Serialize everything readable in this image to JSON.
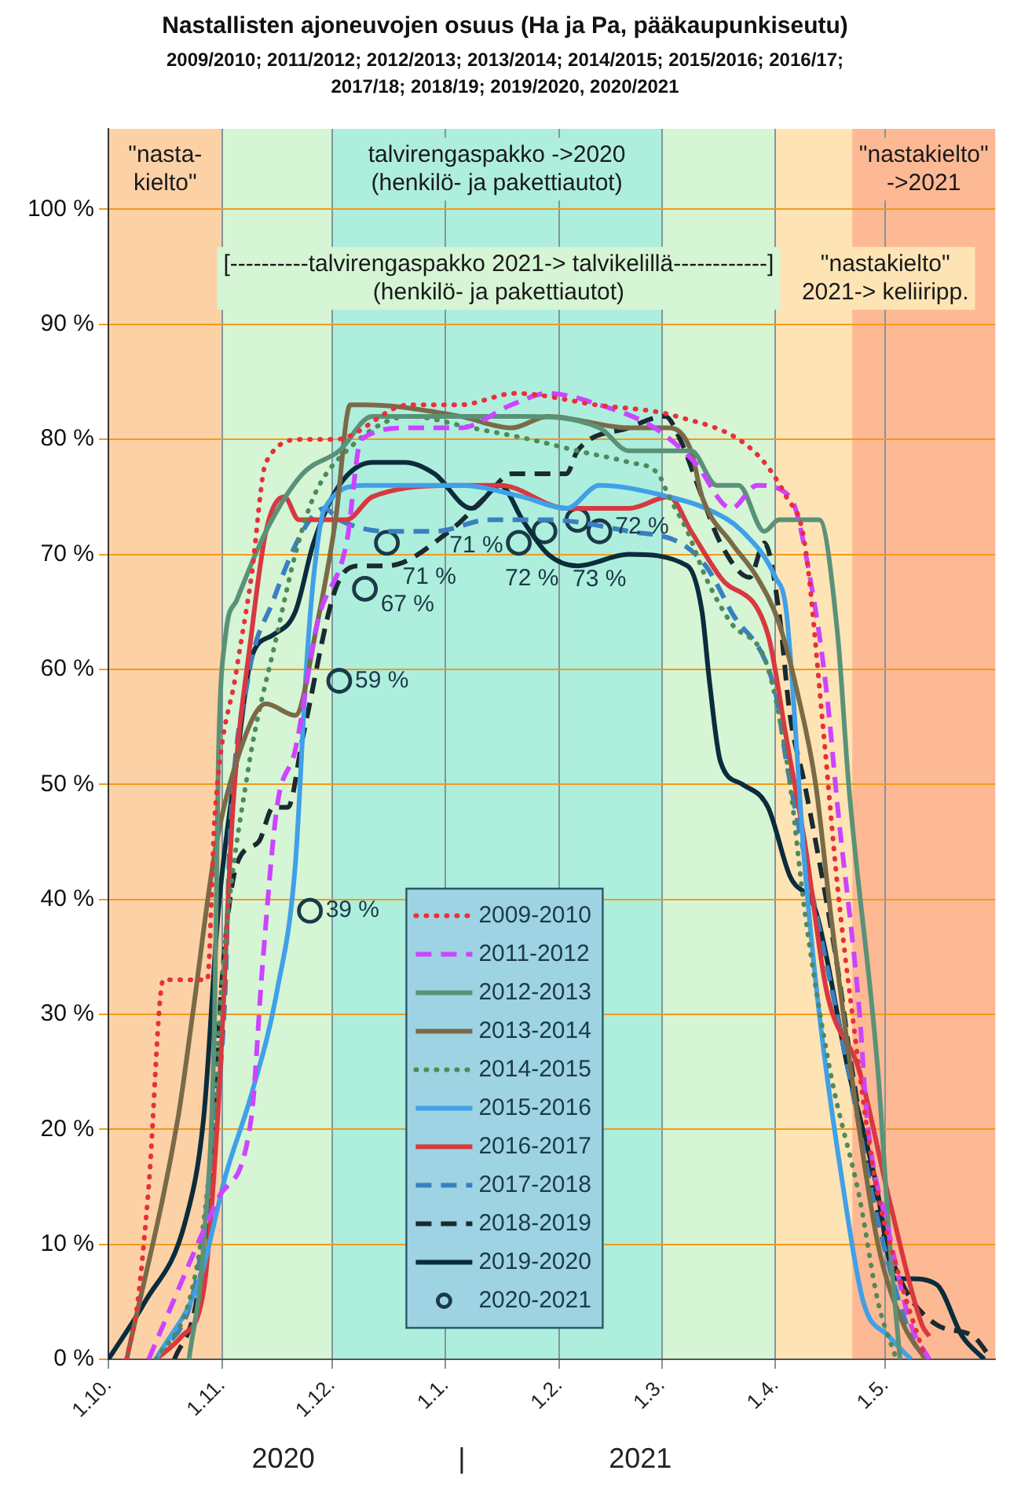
{
  "chart_data": {
    "type": "line",
    "title": "Nastallisten ajoneuvojen osuus (Ha ja Pa, pääkaupunkiseutu)",
    "subtitle": "2009/2010; 2011/2012; 2012/2013; 2013/2014; 2014/2015; 2015/2016; 2016/17; 2017/18;  2018/19; 2019/2020, 2020/2021",
    "xlim": [
      "2020-10-01",
      "2021-05-31"
    ],
    "xticks": [
      {
        "value": "2020-10-01",
        "label": "1.10."
      },
      {
        "value": "2020-11-01",
        "label": "1.11."
      },
      {
        "value": "2020-12-01",
        "label": "1.12."
      },
      {
        "value": "2021-01-01",
        "label": "1.1."
      },
      {
        "value": "2021-02-01",
        "label": "1.2."
      },
      {
        "value": "2021-03-01",
        "label": "1.3."
      },
      {
        "value": "2021-04-01",
        "label": "1.4."
      },
      {
        "value": "2021-05-01",
        "label": "1.5."
      }
    ],
    "ylim": [
      0,
      107
    ],
    "yticks": [
      {
        "value": 0,
        "label": "0 %"
      },
      {
        "value": 10,
        "label": "10 %"
      },
      {
        "value": 20,
        "label": "20 %"
      },
      {
        "value": 30,
        "label": "30 %"
      },
      {
        "value": 40,
        "label": "40 %"
      },
      {
        "value": 50,
        "label": "50 %"
      },
      {
        "value": 60,
        "label": "60 %"
      },
      {
        "value": 70,
        "label": "70 %"
      },
      {
        "value": 80,
        "label": "80 %"
      },
      {
        "value": 90,
        "label": "90 %"
      },
      {
        "value": 100,
        "label": "100 %"
      }
    ],
    "grid": true,
    "legend": "bottom",
    "bands": [
      {
        "axis": "x",
        "from": "2020-10-01",
        "to": "2020-11-01",
        "color": "#fdd1a6",
        "label": "\"nasta-\nkielto\""
      },
      {
        "axis": "x",
        "from": "2020-11-01",
        "to": "2021-04-01",
        "color": "#d5f5d5",
        "label": "[----------talvirengaspakko 2021-> talvikelillä------------]\n(henkilö- ja pakettiautot)"
      },
      {
        "axis": "x",
        "from": "2020-12-01",
        "to": "2021-03-01",
        "color": "#aeeedd",
        "label": "talvirengaspakko ->2020\n(henkilö- ja pakettiautot)"
      },
      {
        "axis": "x",
        "from": "2021-04-01",
        "to": "2021-05-31",
        "color": "#fee4b5",
        "label": "\"nastakielto\"\n2021-> keliiripp."
      },
      {
        "axis": "x",
        "from": "2021-04-22",
        "to": "2021-05-31",
        "color": "#fdb994",
        "label": "\"nastakielto\"\n->2021"
      }
    ],
    "annotations": [
      "2020",
      "|",
      "2021"
    ],
    "series": [
      {
        "name": "2009-2010",
        "color": "#e8303a",
        "line_style": "dotted",
        "marker": "none",
        "x": [
          "2020-10-06",
          "2020-10-09",
          "2020-10-12",
          "2020-10-16",
          "2020-10-28",
          "2020-10-30",
          "2020-11-05",
          "2020-11-09",
          "2020-11-13",
          "2020-11-23",
          "2020-12-02",
          "2020-12-22",
          "2021-01-05",
          "2021-01-20",
          "2021-02-11",
          "2021-03-05",
          "2021-03-26",
          "2021-04-04",
          "2021-04-09",
          "2021-04-14",
          "2021-04-18",
          "2021-04-22",
          "2021-04-28",
          "2021-05-05",
          "2021-05-12"
        ],
        "values": [
          0,
          5,
          15,
          33,
          33,
          47,
          60,
          68,
          78,
          80,
          80,
          83,
          83,
          84,
          83,
          82,
          79,
          75,
          71,
          55,
          41,
          30,
          16,
          7,
          0
        ]
      },
      {
        "name": "2011-2012",
        "color": "#cc44ff",
        "line_style": "dashed",
        "marker": "none",
        "x": [
          "2020-10-12",
          "2020-10-16",
          "2020-10-31",
          "2020-11-09",
          "2020-11-12",
          "2020-11-16",
          "2020-11-21",
          "2020-11-27",
          "2020-12-05",
          "2020-12-09",
          "2020-12-22",
          "2021-01-05",
          "2021-01-19",
          "2021-01-29",
          "2021-02-12",
          "2021-02-27",
          "2021-03-10",
          "2021-03-20",
          "2021-03-27",
          "2021-04-05",
          "2021-04-11",
          "2021-04-15",
          "2021-04-18",
          "2021-04-24",
          "2021-04-26",
          "2021-05-02",
          "2021-05-08",
          "2021-05-13"
        ],
        "values": [
          0,
          3,
          14,
          21,
          34,
          48,
          53,
          64,
          71,
          80,
          81,
          81,
          83,
          84,
          83,
          81,
          78,
          74,
          76,
          75,
          67,
          58,
          48,
          30,
          21,
          11,
          3,
          0
        ]
      },
      {
        "name": "2012-2013",
        "color": "#5a9278",
        "line_style": "solid",
        "marker": "none",
        "x": [
          "2020-10-23",
          "2020-10-27",
          "2020-10-30",
          "2020-10-31",
          "2020-11-02",
          "2020-11-05",
          "2020-11-13",
          "2020-11-23",
          "2020-12-03",
          "2020-12-12",
          "2021-01-08",
          "2021-01-22",
          "2021-02-12",
          "2021-02-20",
          "2021-03-03",
          "2021-03-09",
          "2021-03-16",
          "2021-03-22",
          "2021-03-29",
          "2021-04-02",
          "2021-04-09",
          "2021-04-13",
          "2021-04-18",
          "2021-04-21",
          "2021-04-29",
          "2021-05-02",
          "2021-05-05"
        ],
        "values": [
          0,
          10,
          30,
          52,
          63,
          66,
          72,
          77,
          79,
          82,
          82,
          82,
          81,
          79,
          79,
          79,
          76,
          76,
          72,
          73,
          73,
          73,
          63,
          50,
          25,
          11,
          0
        ]
      },
      {
        "name": "2013-2014",
        "color": "#7a6a48",
        "line_style": "solid",
        "marker": "none",
        "x": [
          "2020-10-06",
          "2020-10-20",
          "2020-10-24",
          "2020-10-30",
          "2020-11-05",
          "2020-11-13",
          "2020-11-21",
          "2020-11-27",
          "2020-12-02",
          "2020-12-06",
          "2020-12-10",
          "2021-01-05",
          "2021-01-19",
          "2021-01-29",
          "2021-02-20",
          "2021-03-03",
          "2021-03-09",
          "2021-03-12",
          "2021-03-20",
          "2021-03-27",
          "2021-04-02",
          "2021-04-07",
          "2021-04-12",
          "2021-04-16",
          "2021-04-23",
          "2021-04-29",
          "2021-05-06",
          "2021-05-12"
        ],
        "values": [
          0,
          21,
          30,
          44,
          52,
          57,
          56,
          64,
          73,
          83,
          83,
          82,
          81,
          82,
          81,
          81,
          79,
          75,
          71,
          68,
          64,
          58,
          50,
          39,
          22,
          10,
          3,
          0
        ]
      },
      {
        "name": "2014-2015",
        "color": "#4e8a5c",
        "line_style": "dotted",
        "marker": "none",
        "x": [
          "2020-10-14",
          "2020-10-23",
          "2020-10-27",
          "2020-10-30",
          "2020-11-01",
          "2020-11-08",
          "2020-11-16",
          "2020-11-21",
          "2020-11-26",
          "2020-12-05",
          "2020-12-22",
          "2021-01-08",
          "2021-01-24",
          "2021-02-06",
          "2021-02-20",
          "2021-02-28",
          "2021-03-03",
          "2021-03-08",
          "2021-03-13",
          "2021-03-20",
          "2021-03-29",
          "2021-04-02",
          "2021-04-05",
          "2021-04-09",
          "2021-04-16",
          "2021-04-24",
          "2021-04-29",
          "2021-05-04"
        ],
        "values": [
          0,
          5,
          12,
          22,
          33,
          51,
          63,
          70,
          75,
          79,
          82,
          81,
          80,
          79,
          78,
          77,
          75,
          72,
          68,
          64,
          61,
          56,
          50,
          39,
          25,
          14,
          5,
          0
        ]
      },
      {
        "name": "2015-2016",
        "color": "#40a0e8",
        "line_style": "solid",
        "marker": "none",
        "x": [
          "2020-10-14",
          "2020-10-26",
          "2020-11-02",
          "2020-11-09",
          "2020-11-16",
          "2020-11-21",
          "2020-11-24",
          "2020-11-26",
          "2020-11-29",
          "2020-12-10",
          "2021-01-05",
          "2021-01-22",
          "2021-02-03",
          "2021-02-12",
          "2021-03-03",
          "2021-03-13",
          "2021-03-23",
          "2021-04-01",
          "2021-04-04",
          "2021-04-09",
          "2021-04-13",
          "2021-04-19",
          "2021-04-25",
          "2021-05-02",
          "2021-05-08"
        ],
        "values": [
          0,
          7,
          16,
          23,
          32,
          43,
          60,
          68,
          74,
          76,
          76,
          75,
          74,
          76,
          75,
          74,
          72,
          68,
          65,
          43,
          30,
          16,
          5,
          2,
          0
        ]
      },
      {
        "name": "2016-2017",
        "color": "#d8383f",
        "line_style": "solid",
        "marker": "none",
        "x": [
          "2020-10-14",
          "2020-10-21",
          "2020-10-27",
          "2020-10-31",
          "2020-11-04",
          "2020-11-09",
          "2020-11-13",
          "2020-11-18",
          "2020-11-22",
          "2020-11-26",
          "2020-12-05",
          "2020-12-12",
          "2021-01-05",
          "2021-01-16",
          "2021-02-03",
          "2021-02-20",
          "2021-03-03",
          "2021-03-09",
          "2021-03-17",
          "2021-03-30",
          "2021-04-04",
          "2021-04-09",
          "2021-04-15",
          "2021-04-24",
          "2021-05-02",
          "2021-05-11",
          "2021-05-13"
        ],
        "values": [
          0,
          2,
          6,
          22,
          48,
          63,
          72,
          75,
          73,
          73,
          73,
          75,
          76,
          76,
          74,
          74,
          75,
          72,
          68,
          63,
          54,
          45,
          32,
          25,
          14,
          3,
          2
        ]
      },
      {
        "name": "2017-2018",
        "color": "#3a80c0",
        "line_style": "dashed",
        "marker": "none",
        "x": [
          "2020-10-14",
          "2020-10-25",
          "2020-10-30",
          "2020-11-02",
          "2020-11-03",
          "2020-11-08",
          "2020-11-15",
          "2020-11-23",
          "2020-11-29",
          "2020-12-03",
          "2020-12-16",
          "2020-12-29",
          "2021-01-13",
          "2021-01-29",
          "2021-02-20",
          "2021-03-06",
          "2021-03-13",
          "2021-03-20",
          "2021-04-01",
          "2021-04-04",
          "2021-04-12",
          "2021-04-21",
          "2021-04-29",
          "2021-05-08",
          "2021-05-12"
        ],
        "values": [
          0,
          7,
          20,
          33,
          44,
          59,
          66,
          72,
          74,
          73,
          72,
          72,
          73,
          73,
          72,
          71,
          69,
          65,
          58,
          52,
          39,
          25,
          12,
          2,
          0
        ]
      },
      {
        "name": "2018-2019",
        "color": "#1a2a30",
        "line_style": "dashed",
        "marker": "none",
        "x": [
          "2020-10-19",
          "2020-10-25",
          "2020-10-29",
          "2020-11-01",
          "2020-11-05",
          "2020-11-11",
          "2020-11-15",
          "2020-11-19",
          "2020-11-23",
          "2020-12-02",
          "2020-12-08",
          "2020-12-16",
          "2021-01-02",
          "2021-01-12",
          "2021-01-19",
          "2021-02-03",
          "2021-02-06",
          "2021-02-20",
          "2021-03-02",
          "2021-03-06",
          "2021-03-12",
          "2021-03-17",
          "2021-03-25",
          "2021-03-29",
          "2021-04-02",
          "2021-04-05",
          "2021-04-09",
          "2021-04-18",
          "2021-04-22",
          "2021-04-28",
          "2021-05-05",
          "2021-05-15",
          "2021-05-25",
          "2021-05-30"
        ],
        "values": [
          0,
          5,
          16,
          33,
          43,
          45,
          48,
          48,
          54,
          67,
          69,
          69,
          72,
          75,
          77,
          77,
          79,
          81,
          82,
          80,
          75,
          71,
          68,
          71,
          65,
          56,
          50,
          34,
          25,
          14,
          7,
          3,
          2,
          0
        ]
      },
      {
        "name": "2019-2020",
        "color": "#0a2c3c",
        "line_style": "solid",
        "marker": "none",
        "x": [
          "2020-10-01",
          "2020-10-11",
          "2020-10-22",
          "2020-10-27",
          "2020-10-31",
          "2020-11-05",
          "2020-11-09",
          "2020-11-15",
          "2020-11-21",
          "2020-11-26",
          "2020-12-03",
          "2020-12-12",
          "2020-12-21",
          "2020-12-29",
          "2021-01-08",
          "2021-01-16",
          "2021-01-22",
          "2021-01-29",
          "2021-02-06",
          "2021-02-20",
          "2021-03-08",
          "2021-03-12",
          "2021-03-14",
          "2021-03-17",
          "2021-03-23",
          "2021-03-30",
          "2021-04-05",
          "2021-04-12",
          "2021-04-21",
          "2021-04-28",
          "2021-05-04",
          "2021-05-08",
          "2021-05-15",
          "2021-05-22",
          "2021-05-28"
        ],
        "values": [
          0,
          5,
          12,
          21,
          39,
          52,
          61,
          63,
          65,
          71,
          76,
          78,
          78,
          77,
          74,
          76,
          73,
          70,
          69,
          70,
          69,
          65,
          59,
          52,
          50,
          48,
          42,
          39,
          25,
          16,
          7,
          7,
          6.5,
          2,
          0
        ]
      },
      {
        "name": "2020-2021",
        "type": "scatter",
        "color": "#1a3a48",
        "marker": "circle",
        "x": [
          "2020-11-25",
          "2020-12-03",
          "2020-12-10",
          "2020-12-16",
          "2021-01-21",
          "2021-01-28",
          "2021-02-06",
          "2021-02-12"
        ],
        "values": [
          39,
          59,
          67,
          71,
          71,
          72,
          73,
          72
        ],
        "value_labels": [
          "39 %",
          "59 %",
          "67 %",
          "71 %",
          "71 %",
          "72 %",
          "73 %",
          "72 %"
        ]
      }
    ]
  }
}
